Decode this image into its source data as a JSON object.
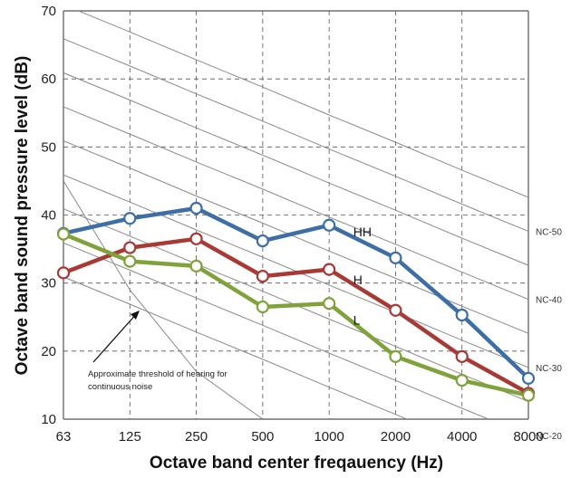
{
  "chart_data": {
    "type": "line",
    "xlabel": "Octave band center freqauency (Hz)",
    "ylabel": "Octave band sound pressure level (dB)",
    "categories": [
      "63",
      "125",
      "250",
      "500",
      "1000",
      "2000",
      "4000",
      "8000"
    ],
    "ylim": [
      10,
      70
    ],
    "yticks": [
      10,
      20,
      30,
      40,
      50,
      60,
      70
    ],
    "grid": true,
    "series": [
      {
        "name": "HH",
        "color": "#3d6fa6",
        "values": [
          37.3,
          39.5,
          41,
          36.2,
          38.5,
          33.7,
          25.3,
          16
        ]
      },
      {
        "name": "H",
        "color": "#a83a36",
        "values": [
          31.5,
          35.2,
          36.5,
          31,
          32,
          26,
          19.2,
          13.8
        ]
      },
      {
        "name": "L",
        "color": "#7fa33a",
        "values": [
          37.2,
          33.2,
          32.5,
          26.5,
          27,
          19.2,
          15.7,
          13.5
        ]
      }
    ],
    "nc_curves": [
      {
        "label": "",
        "values": [
          70.9,
          66.9,
          62.8,
          58.8,
          54.7,
          50.7,
          46.6,
          42.6
        ]
      },
      {
        "label": "NC-50",
        "values": [
          65.9,
          61.9,
          57.8,
          53.8,
          49.7,
          45.7,
          41.6,
          37.6
        ]
      },
      {
        "label": "",
        "values": [
          60.9,
          56.9,
          52.8,
          48.8,
          44.7,
          40.7,
          36.6,
          32.6
        ]
      },
      {
        "label": "NC-40",
        "values": [
          55.9,
          51.9,
          47.8,
          43.8,
          39.7,
          35.7,
          31.6,
          27.6
        ]
      },
      {
        "label": "",
        "values": [
          50.9,
          46.9,
          42.8,
          38.8,
          34.7,
          30.7,
          26.6,
          22.6
        ]
      },
      {
        "label": "NC-30",
        "values": [
          45.9,
          41.9,
          37.8,
          33.8,
          29.7,
          25.7,
          21.6,
          17.6
        ]
      },
      {
        "label": "",
        "values": [
          40.9,
          36.9,
          32.8,
          28.8,
          24.7,
          20.7,
          16.6,
          12.6
        ]
      },
      {
        "label": "NC-20",
        "values": [
          35.9,
          31.9,
          27.8,
          23.8,
          19.7,
          15.7,
          11.6,
          7.6
        ]
      },
      {
        "label": "",
        "values": [
          30.9,
          26.9,
          22.8,
          18.8,
          14.7,
          10.7,
          6.6,
          2.6
        ]
      },
      {
        "label": "",
        "values": [
          45,
          29,
          17,
          10,
          5,
          2,
          0,
          0
        ]
      }
    ],
    "annotation": {
      "text_line1": "Approximate threshold of hearing for",
      "text_line2": "continuous noise"
    }
  }
}
